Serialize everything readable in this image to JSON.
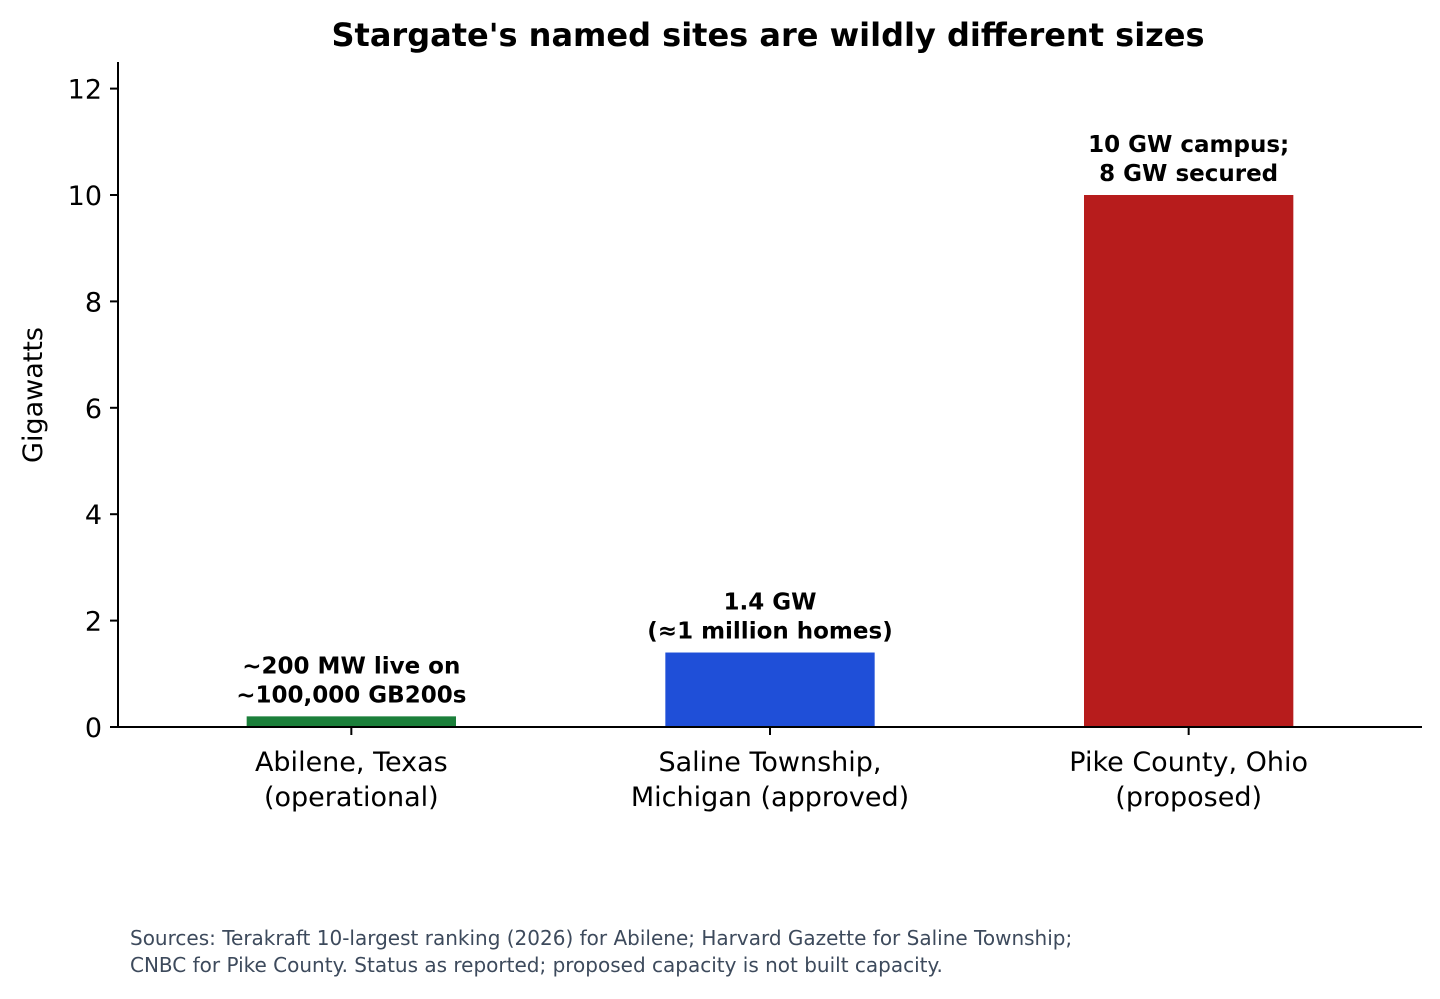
{
  "chart_data": {
    "type": "bar",
    "title": "Stargate's named sites are wildly different sizes",
    "xlabel": "",
    "ylabel": "Gigawatts",
    "ylim": [
      0,
      12.5
    ],
    "yticks": [
      0,
      2,
      4,
      6,
      8,
      10,
      12
    ],
    "grid": false,
    "categories": [
      [
        "Abilene, Texas",
        "(operational)"
      ],
      [
        "Saline Township,",
        "Michigan (approved)"
      ],
      [
        "Pike County, Ohio",
        "(proposed)"
      ]
    ],
    "values": [
      0.2,
      1.4,
      10
    ],
    "colors": [
      "#1b7f3a",
      "#1f4fd8",
      "#b71c1c"
    ],
    "data_labels": [
      [
        "~200 MW live on",
        "~100,000 GB200s"
      ],
      [
        "1.4 GW",
        "(≈1 million homes)"
      ],
      [
        "10 GW campus;",
        "8 GW secured"
      ]
    ]
  },
  "footer": {
    "source_lines": [
      "Sources: Terakraft 10-largest ranking (2026) for Abilene; Harvard Gazette for Saline Township;",
      "CNBC for Pike County. Status as reported; proposed capacity is not built capacity."
    ]
  }
}
